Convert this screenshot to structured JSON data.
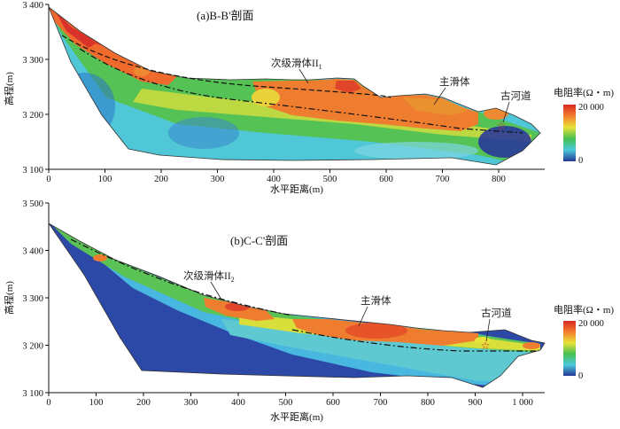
{
  "panels": [
    {
      "id": "a",
      "title": "(a)B-B'剖面",
      "xlabel": "水平距离(m)",
      "ylabel": "高程(m)",
      "xticks": [
        "0",
        "100",
        "200",
        "300",
        "400",
        "500",
        "600",
        "700",
        "800"
      ],
      "yticks": [
        "3 100",
        "3 200",
        "3 300",
        "3 400"
      ],
      "annotations": {
        "secondary_slide": "次级滑体II",
        "secondary_subscript": "1",
        "main_slide": "主滑体",
        "old_river": "古河道"
      },
      "legend": {
        "title": "电阻率(Ω・m)",
        "max": "20 000",
        "min": "0"
      }
    },
    {
      "id": "b",
      "title": "(b)C-C'剖面",
      "xlabel": "水平距离(m)",
      "ylabel": "高程(m)",
      "xticks": [
        "0",
        "100",
        "200",
        "300",
        "400",
        "500",
        "600",
        "700",
        "800",
        "900",
        "1 000"
      ],
      "yticks": [
        "3 100",
        "3 200",
        "3 300",
        "3 400",
        "3 500"
      ],
      "annotations": {
        "secondary_slide": "次级滑体II",
        "secondary_subscript": "2",
        "main_slide": "主滑体",
        "old_river": "古河道"
      },
      "legend": {
        "title": "电阻率(Ω・m)",
        "max": "20 000",
        "min": "0"
      }
    }
  ],
  "colors": {
    "high": "#e0422a",
    "orange": "#f08a32",
    "yellow": "#e8e23a",
    "green": "#4cbf52",
    "cyan": "#4ec6d8",
    "low": "#2a3a9a",
    "axis": "#111111",
    "slip_line": "#111111"
  }
}
